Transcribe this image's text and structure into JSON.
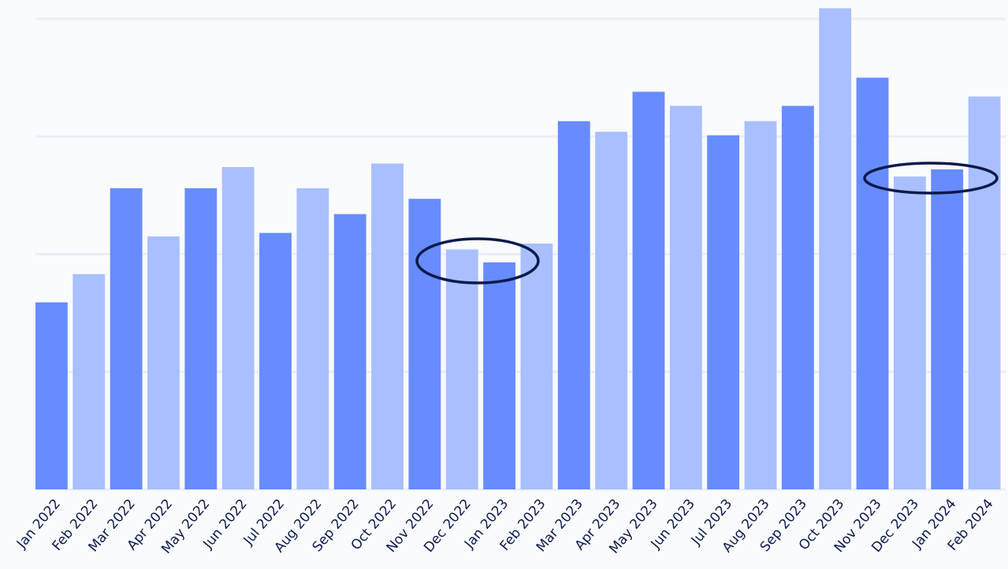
{
  "chart_data": {
    "type": "bar",
    "categories": [
      "Jan 2022",
      "Feb 2022",
      "Mar 2022",
      "Apr 2022",
      "May 2022",
      "Jun 2022",
      "Jul 2022",
      "Aug 2022",
      "Sep 2022",
      "Oct 2022",
      "Nov 2022",
      "Dec 2022",
      "Jan 2023",
      "Feb 2023",
      "Mar 2023",
      "Apr 2023",
      "May 2023",
      "Jun 2023",
      "Jul 2023",
      "Aug 2023",
      "Sep 2023",
      "Oct 2023",
      "Nov 2023",
      "Dec 2023",
      "Jan 2024",
      "Feb 2024"
    ],
    "values": [
      159,
      183,
      256,
      215,
      256,
      274,
      218,
      256,
      234,
      277,
      247,
      204,
      193,
      209,
      313,
      304,
      338,
      326,
      301,
      313,
      326,
      409,
      350,
      266,
      272,
      334
    ],
    "colors": [
      "#678cff",
      "#a9bfff"
    ],
    "ylim": [
      0,
      416
    ],
    "yticks": [
      0,
      100,
      200,
      300,
      400
    ],
    "grid": true
  }
}
